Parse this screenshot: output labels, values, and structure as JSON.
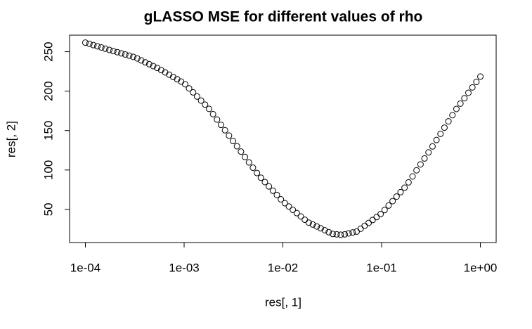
{
  "chart_data": {
    "type": "scatter",
    "title": "gLASSO MSE for different values of rho",
    "x_label": "res[, 1]",
    "y_label": "res[, 2]",
    "log_x": true,
    "grid": false,
    "color": "#000000",
    "x": [
      0.0001,
      0.0001098,
      0.0001205,
      0.0001322,
      0.0001451,
      0.0001592,
      0.0001748,
      0.0001918,
      0.0002105,
      0.000231,
      0.0002535,
      0.0002783,
      0.0003054,
      0.0003352,
      0.0003678,
      0.0004037,
      0.0004431,
      0.0004863,
      0.0005337,
      0.0005857,
      0.0006428,
      0.0007055,
      0.0007743,
      0.0008498,
      0.0009326,
      0.001024,
      0.001123,
      0.001233,
      0.001353,
      0.001485,
      0.00163,
      0.001789,
      0.001963,
      0.002154,
      0.002364,
      0.002595,
      0.002848,
      0.003126,
      0.00343,
      0.003765,
      0.004132,
      0.004535,
      0.004977,
      0.005462,
      0.005995,
      0.006579,
      0.007221,
      0.007925,
      0.008697,
      0.009545,
      0.01048,
      0.0115,
      0.01262,
      0.01385,
      0.0152,
      0.01668,
      0.01831,
      0.02009,
      0.02205,
      0.0242,
      0.02656,
      0.02915,
      0.03199,
      0.03511,
      0.03854,
      0.04229,
      0.04642,
      0.05094,
      0.05591,
      0.06136,
      0.06734,
      0.07391,
      0.08111,
      0.08902,
      0.0977,
      0.1072,
      0.1177,
      0.1292,
      0.1417,
      0.1556,
      0.1707,
      0.1874,
      0.2057,
      0.2257,
      0.2477,
      0.2719,
      0.2984,
      0.3275,
      0.3594,
      0.3944,
      0.4329,
      0.4751,
      0.5214,
      0.5722,
      0.628,
      0.6893,
      0.7565,
      0.8302,
      0.9112,
      1
    ],
    "values": [
      261.5,
      260.0,
      258.4,
      256.9,
      255.4,
      253.8,
      252.3,
      250.8,
      249.4,
      247.9,
      246.5,
      245.0,
      243.5,
      241.5,
      239.0,
      236.6,
      234.2,
      231.8,
      229.4,
      226.7,
      223.8,
      220.9,
      218.0,
      215.1,
      212.2,
      208.7,
      203.5,
      198.4,
      193.2,
      188.0,
      182.9,
      177.5,
      170.8,
      164.0,
      157.2,
      150.4,
      143.6,
      136.8,
      130.1,
      123.3,
      116.5,
      109.6,
      102.9,
      96.2,
      90.2,
      84.7,
      79.2,
      73.7,
      68.3,
      62.8,
      57.9,
      53.7,
      49.5,
      45.3,
      41.1,
      36.9,
      33.2,
      30.8,
      28.4,
      26.0,
      23.6,
      21.1,
      18.9,
      18.4,
      17.9,
      18.4,
      19.6,
      20.8,
      21.9,
      25.5,
      29.2,
      32.9,
      36.6,
      40.3,
      44.1,
      49.2,
      54.9,
      60.5,
      66.3,
      71.9,
      77.5,
      84.3,
      91.8,
      99.6,
      107.1,
      114.6,
      122.3,
      129.9,
      138.0,
      145.8,
      153.7,
      161.7,
      169.5,
      177.4,
      184.2,
      191.0,
      197.9,
      204.7,
      211.7,
      218.5
    ],
    "xlim": [
      6.918e-05,
      1.4454
    ],
    "ylim": [
      8,
      271
    ],
    "xticks": [
      {
        "value": 0.0001,
        "label": "1e-04"
      },
      {
        "value": 0.001,
        "label": "1e-03"
      },
      {
        "value": 0.01,
        "label": "1e-02"
      },
      {
        "value": 0.1,
        "label": "1e-01"
      },
      {
        "value": 1,
        "label": "1e+00"
      }
    ],
    "yticks": [
      50,
      100,
      150,
      200,
      250
    ]
  }
}
